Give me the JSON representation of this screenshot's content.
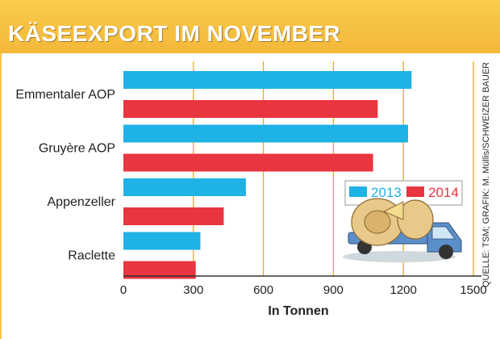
{
  "header": {
    "title": "KÄSEEXPORT IM NOVEMBER"
  },
  "credit": "QUELLE: TSM; GRAFIK: M. Müllis/SCHWEIZER BAUER",
  "colors": {
    "s2013": "#1fb2e5",
    "s2014": "#e8353f",
    "grid": "#e8ab25",
    "accent": "#f4b73a"
  },
  "chart_data": {
    "type": "bar",
    "orientation": "horizontal",
    "categories": [
      "Emmentaler AOP",
      "Gruyère AOP",
      "Appenzeller",
      "Raclette"
    ],
    "series": [
      {
        "name": "2013",
        "values": [
          1235,
          1220,
          525,
          330
        ]
      },
      {
        "name": "2014",
        "values": [
          1090,
          1070,
          430,
          310
        ]
      }
    ],
    "xlabel": "In Tonnen",
    "xticks": [
      "0",
      "300",
      "600",
      "900",
      "1200",
      "1500"
    ],
    "xlim": [
      0,
      1500
    ],
    "grid": true,
    "legend": "inside-right"
  }
}
